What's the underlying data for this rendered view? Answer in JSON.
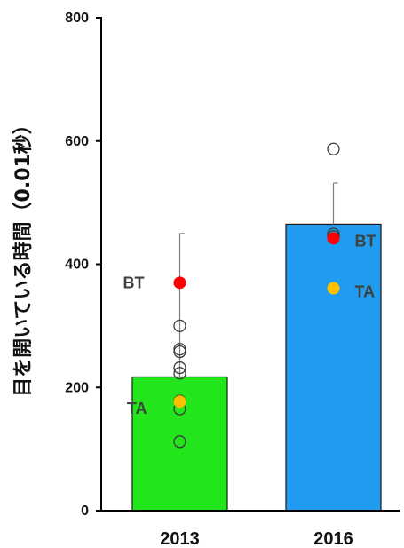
{
  "chart_data": {
    "type": "bar",
    "title": "",
    "xlabel": "",
    "ylabel": "目を開いている時間（0.01秒）",
    "ylim": [
      0,
      800
    ],
    "yticks": [
      0,
      200,
      400,
      600,
      800
    ],
    "categories": [
      "2013",
      "2016"
    ],
    "bar_colors": [
      "#22e61b",
      "#1f9cf0"
    ],
    "values": [
      217,
      465
    ],
    "error_upper": [
      450,
      532
    ],
    "points": [
      [
        112,
        165,
        178,
        223,
        232,
        258,
        262,
        300
      ],
      [
        445,
        449,
        587
      ]
    ],
    "highlight_points": [
      {
        "label": "BT",
        "category": "2013",
        "value": 370,
        "color": "#ff0000"
      },
      {
        "label": "TA",
        "category": "2013",
        "value": 177,
        "color": "#ffc000"
      },
      {
        "label": "BT",
        "category": "2016",
        "value": 442,
        "color": "#ff0000"
      },
      {
        "label": "TA",
        "category": "2016",
        "value": 361,
        "color": "#ffc000"
      }
    ]
  }
}
